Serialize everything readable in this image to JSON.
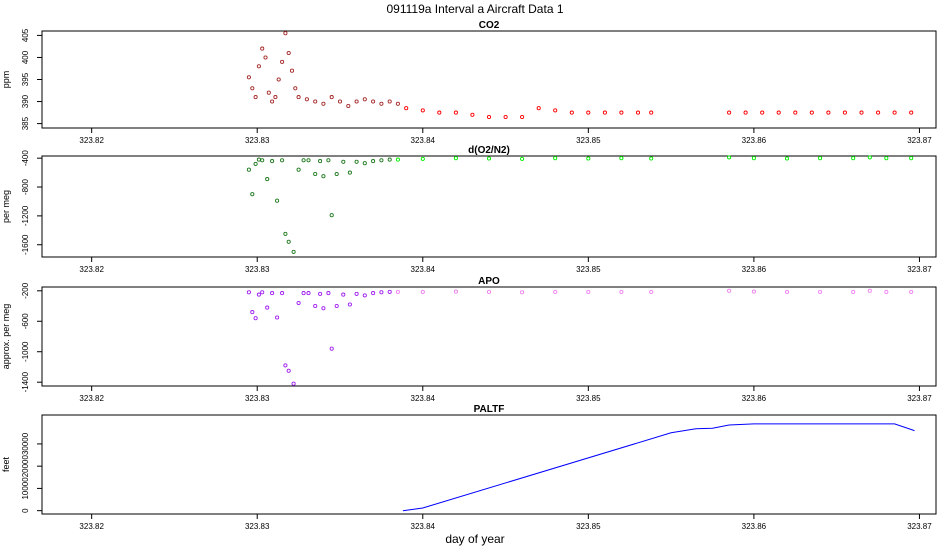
{
  "figure": {
    "title": "091119a   Interval a Aircraft Data 1",
    "xlabel": "day of year"
  },
  "colors": {
    "co2_early": "#a52a2a",
    "co2_late": "#ff0000",
    "o2n2_early": "#1e7a1e",
    "o2n2_late": "#00ee00",
    "apo_early": "#a020f0",
    "apo_late": "#ee82ee",
    "paltf_line": "#0000ff",
    "axis": "#000000"
  },
  "chart_data": [
    {
      "type": "scatter",
      "title": "CO2",
      "ylabel": "ppm",
      "xlim": [
        323.817,
        323.871
      ],
      "ylim": [
        384,
        406
      ],
      "xticks": [
        "323.82",
        "323.83",
        "323.84",
        "323.85",
        "323.86",
        "323.87"
      ],
      "yticks": [
        "385",
        "390",
        "395",
        "400",
        "405"
      ],
      "series": [
        {
          "color_key": "co2_early",
          "x": [
            323.8295,
            323.8297,
            323.8299,
            323.8301,
            323.8303,
            323.8305,
            323.8307,
            323.8309,
            323.8311,
            323.8313,
            323.8315,
            323.8317,
            323.8319,
            323.8321,
            323.8323,
            323.8325,
            323.833,
            323.8335,
            323.834,
            323.8345,
            323.835,
            323.8355,
            323.836,
            323.8365,
            323.837,
            323.8375,
            323.838,
            323.8385
          ],
          "y": [
            395.5,
            393,
            391,
            398,
            402,
            400,
            392,
            390,
            391,
            395,
            399,
            405.5,
            401,
            397,
            393,
            391,
            390.5,
            390,
            389.5,
            391,
            390,
            389,
            390,
            390.5,
            390,
            389.5,
            390,
            389.5
          ]
        },
        {
          "color_key": "co2_late",
          "x": [
            323.839,
            323.84,
            323.841,
            323.842,
            323.843,
            323.844,
            323.845,
            323.846,
            323.847,
            323.848,
            323.849,
            323.85,
            323.851,
            323.852,
            323.853,
            323.8538,
            323.8585,
            323.8595,
            323.8605,
            323.8615,
            323.8625,
            323.8635,
            323.8645,
            323.8655,
            323.8665,
            323.8675,
            323.8685,
            323.8695
          ],
          "y": [
            388.5,
            388,
            387.5,
            387.5,
            387,
            386.5,
            386.5,
            386.5,
            388.5,
            388,
            387.5,
            387.5,
            387.5,
            387.5,
            387.5,
            387.5,
            387.5,
            387.5,
            387.5,
            387.5,
            387.5,
            387.5,
            387.5,
            387.5,
            387.5,
            387.5,
            387.5,
            387.5
          ]
        }
      ]
    },
    {
      "type": "scatter",
      "title": "d(O2/N2)",
      "ylabel": "per meg",
      "xlim": [
        323.817,
        323.871
      ],
      "ylim": [
        -1770,
        -370
      ],
      "xticks": [
        "323.82",
        "323.83",
        "323.84",
        "323.85",
        "323.86",
        "323.87"
      ],
      "yticks": [
        "-1600",
        "-1200",
        "-800",
        "-400"
      ],
      "series": [
        {
          "color_key": "o2n2_early",
          "x": [
            323.8295,
            323.8297,
            323.8299,
            323.8301,
            323.8303,
            323.8306,
            323.8309,
            323.8312,
            323.8315,
            323.8317,
            323.8319,
            323.8322,
            323.8325,
            323.8328,
            323.8331,
            323.8335,
            323.8338,
            323.834,
            323.8343,
            323.8345,
            323.8348,
            323.8352,
            323.8356,
            323.836,
            323.8365,
            323.837,
            323.8375,
            323.838
          ],
          "y": [
            -560,
            -900,
            -480,
            -420,
            -430,
            -690,
            -440,
            -990,
            -430,
            -1450,
            -1560,
            -1700,
            -560,
            -430,
            -430,
            -620,
            -440,
            -650,
            -430,
            -1190,
            -620,
            -450,
            -600,
            -450,
            -470,
            -440,
            -430,
            -420
          ]
        },
        {
          "color_key": "o2n2_late",
          "x": [
            323.8385,
            323.84,
            323.842,
            323.844,
            323.846,
            323.848,
            323.85,
            323.852,
            323.8538,
            323.8585,
            323.86,
            323.862,
            323.864,
            323.866,
            323.867,
            323.868,
            323.8695
          ],
          "y": [
            -420,
            -410,
            -400,
            -405,
            -410,
            -400,
            -405,
            -400,
            -405,
            -390,
            -400,
            -405,
            -400,
            -400,
            -390,
            -400,
            -400
          ]
        }
      ]
    },
    {
      "type": "scatter",
      "title": "APO",
      "ylabel": "approx. per meg",
      "xlim": [
        323.817,
        323.871
      ],
      "ylim": [
        -1450,
        -150
      ],
      "xticks": [
        "323.82",
        "323.83",
        "323.84",
        "323.85",
        "323.86",
        "323.87"
      ],
      "yticks": [
        "-1400",
        "-1000",
        "-600",
        "-200"
      ],
      "series": [
        {
          "color_key": "apo_early",
          "x": [
            323.8295,
            323.8297,
            323.8299,
            323.8301,
            323.8303,
            323.8306,
            323.8309,
            323.8312,
            323.8315,
            323.8317,
            323.8319,
            323.8322,
            323.8325,
            323.8328,
            323.8331,
            323.8335,
            323.8338,
            323.834,
            323.8343,
            323.8345,
            323.8348,
            323.8352,
            323.8356,
            323.836,
            323.8365,
            323.837,
            323.8375,
            323.838
          ],
          "y": [
            -220,
            -480,
            -560,
            -250,
            -220,
            -420,
            -230,
            -550,
            -230,
            -1180,
            -1250,
            -1420,
            -360,
            -230,
            -230,
            -400,
            -240,
            -430,
            -230,
            -960,
            -400,
            -250,
            -380,
            -240,
            -260,
            -230,
            -220,
            -215
          ]
        },
        {
          "color_key": "apo_late",
          "x": [
            323.8385,
            323.84,
            323.842,
            323.844,
            323.846,
            323.848,
            323.85,
            323.852,
            323.8538,
            323.8585,
            323.86,
            323.862,
            323.864,
            323.866,
            323.867,
            323.868,
            323.8695
          ],
          "y": [
            -215,
            -215,
            -210,
            -215,
            -220,
            -215,
            -215,
            -215,
            -215,
            -200,
            -210,
            -215,
            -215,
            -215,
            -200,
            -215,
            -215
          ]
        }
      ]
    },
    {
      "type": "line",
      "title": "PALTF",
      "ylabel": "feet",
      "xlim": [
        323.817,
        323.871
      ],
      "ylim": [
        -1500,
        43000
      ],
      "xticks": [
        "323.82",
        "323.83",
        "323.84",
        "323.85",
        "323.86",
        "323.87"
      ],
      "yticks": [
        "0",
        "10000",
        "20000",
        "30000"
      ],
      "series": [
        {
          "color_key": "paltf_line",
          "x": [
            323.8388,
            323.84,
            323.855,
            323.8565,
            323.8575,
            323.8585,
            323.86,
            323.865,
            323.8685,
            323.8697
          ],
          "y": [
            0,
            1200,
            35000,
            36800,
            37000,
            38500,
            39000,
            39000,
            39000,
            36000
          ]
        }
      ]
    }
  ]
}
